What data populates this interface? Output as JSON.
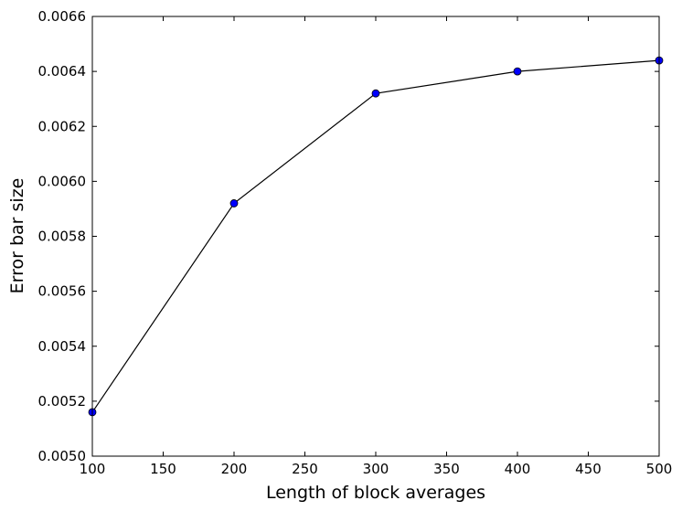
{
  "chart_data": {
    "type": "line",
    "title": "",
    "xlabel": "Length of block averages",
    "ylabel": "Error bar size",
    "xlim": [
      100,
      500
    ],
    "ylim": [
      0.005,
      0.0066
    ],
    "grid": false,
    "x_ticks": [
      "100",
      "150",
      "200",
      "250",
      "300",
      "350",
      "400",
      "450",
      "500"
    ],
    "y_ticks": [
      "0.0050",
      "0.0052",
      "0.0054",
      "0.0056",
      "0.0058",
      "0.0060",
      "0.0062",
      "0.0064",
      "0.0066"
    ],
    "series": [
      {
        "x": [
          100,
          200,
          300,
          400,
          500
        ],
        "y": [
          0.00516,
          0.00592,
          0.00632,
          0.0064,
          0.00644
        ],
        "line_color": "#000000",
        "marker": "circle",
        "marker_color": "#0000ff"
      }
    ]
  }
}
